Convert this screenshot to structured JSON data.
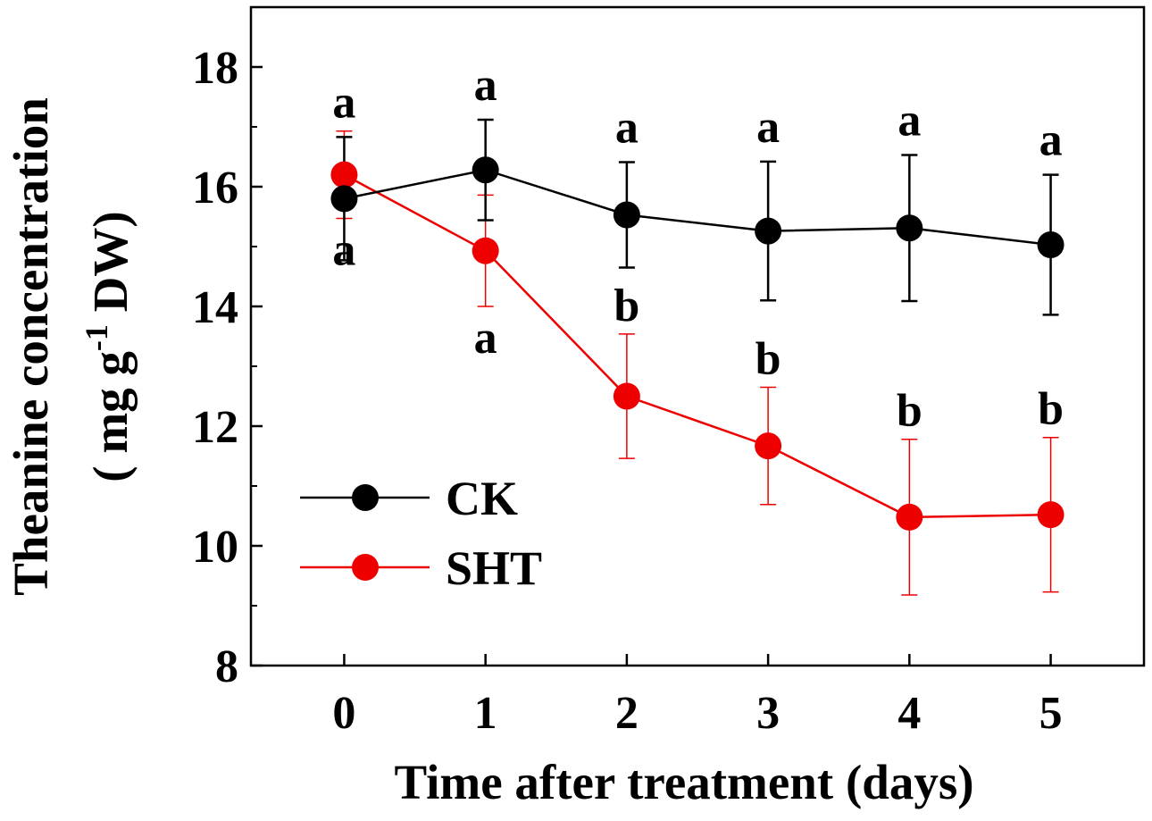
{
  "chart_data": {
    "type": "line",
    "title": "",
    "xlabel": "Time after treatment (days)",
    "ylabel_line1": "Theanine concentration",
    "ylabel_line2_pre": "( mg g",
    "ylabel_line2_sup": "-1",
    "ylabel_line2_post": " DW)",
    "xlim": [
      -0.66,
      5.66
    ],
    "ylim": [
      8,
      19
    ],
    "x": [
      0,
      1,
      2,
      3,
      4,
      5
    ],
    "xticks": [
      "0",
      "1",
      "2",
      "3",
      "4",
      "5"
    ],
    "yticks": [
      "8",
      "10",
      "12",
      "14",
      "16",
      "18"
    ],
    "yticks_values": [
      8,
      10,
      12,
      14,
      16,
      18
    ],
    "grid": false,
    "legend_position": "lower-left",
    "series": [
      {
        "name": "CK",
        "color": "#000000",
        "values": [
          15.8,
          16.28,
          15.53,
          15.26,
          15.31,
          15.03
        ],
        "errors": [
          1.03,
          0.84,
          0.88,
          1.16,
          1.22,
          1.17
        ],
        "significance": [
          "a",
          "a",
          "a",
          "a",
          "a",
          "a"
        ],
        "label_position": "above"
      },
      {
        "name": "SHT",
        "color": "#ee0000",
        "values": [
          16.2,
          14.93,
          12.5,
          11.67,
          10.48,
          10.52
        ],
        "errors": [
          0.73,
          0.93,
          1.04,
          0.98,
          1.3,
          1.29
        ],
        "significance": [
          "a",
          "a",
          "b",
          "b",
          "b",
          "b"
        ],
        "label_position": "below_then_above"
      }
    ]
  }
}
